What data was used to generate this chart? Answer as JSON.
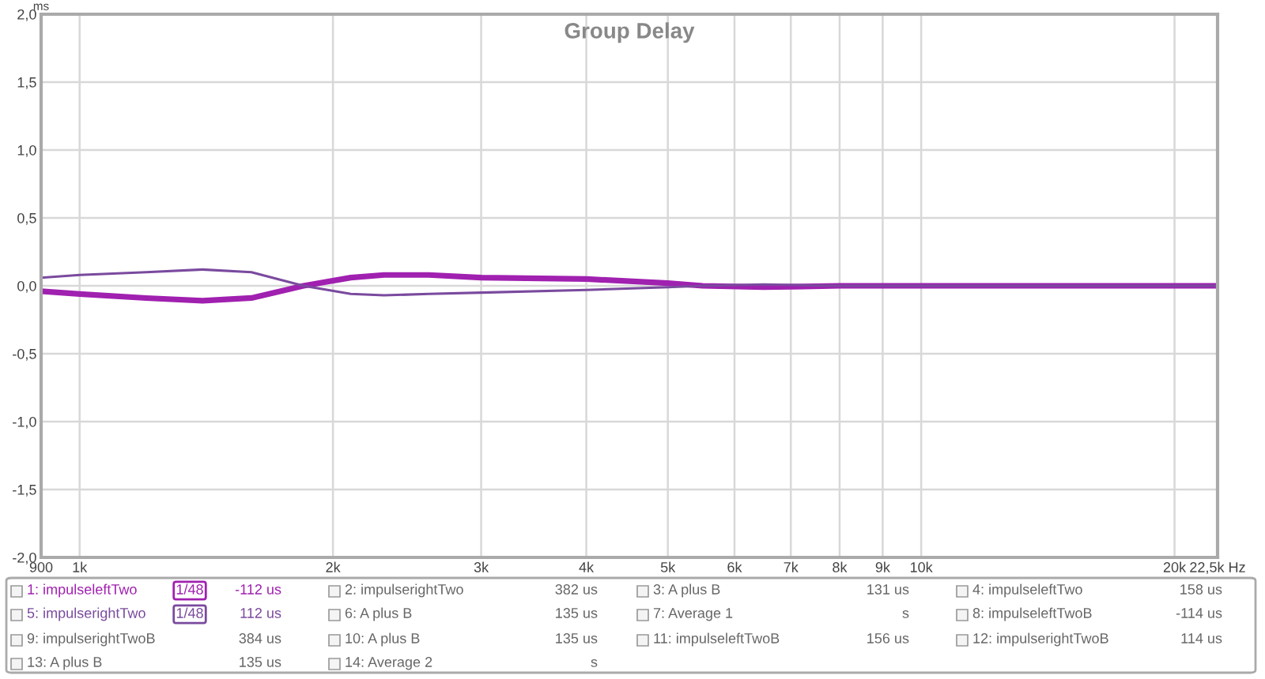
{
  "chart_data": {
    "type": "line",
    "title": "Group Delay",
    "ylabel": "ms",
    "x": [
      900,
      1000,
      1200,
      1400,
      1600,
      1845,
      2100,
      2300,
      2600,
      3000,
      4000,
      5000,
      5500,
      6500,
      8000,
      10000,
      15000,
      22500
    ],
    "series": [
      {
        "name": "1: impulseleftTwo",
        "color": "#a020b0",
        "values": [
          -0.04,
          -0.06,
          -0.09,
          -0.11,
          -0.09,
          0,
          0.06,
          0.08,
          0.08,
          0.06,
          0.05,
          0.02,
          0,
          -0.01,
          0,
          0,
          0,
          0
        ]
      },
      {
        "name": "5: impulserightTwo",
        "color": "#7a4a9e",
        "values": [
          0.06,
          0.08,
          0.1,
          0.12,
          0.1,
          0,
          -0.06,
          -0.07,
          -0.06,
          -0.05,
          -0.03,
          -0.01,
          0,
          0.01,
          0,
          0,
          0,
          0
        ]
      }
    ],
    "log": "x",
    "xlim": [
      900,
      22500
    ],
    "xticks": [
      {
        "value": 900,
        "label": "900"
      },
      {
        "value": 1000,
        "label": "1k"
      },
      {
        "value": 2000,
        "label": "2k"
      },
      {
        "value": 3000,
        "label": "3k"
      },
      {
        "value": 4000,
        "label": "4k"
      },
      {
        "value": 5000,
        "label": "5k"
      },
      {
        "value": 6000,
        "label": "6k"
      },
      {
        "value": 7000,
        "label": "7k"
      },
      {
        "value": 8000,
        "label": "8k"
      },
      {
        "value": 9000,
        "label": "9k"
      },
      {
        "value": 10000,
        "label": "10k"
      },
      {
        "value": 20000,
        "label": "20k"
      },
      {
        "value": 22500,
        "label": "22,5k Hz"
      }
    ],
    "ylim": [
      -2,
      2
    ],
    "yticks": [
      {
        "value": -2,
        "label": "-2,0"
      },
      {
        "value": -1.5,
        "label": "-1,5"
      },
      {
        "value": -1,
        "label": "-1,0"
      },
      {
        "value": -0.5,
        "label": "-0,5"
      },
      {
        "value": 0,
        "label": "0,0"
      },
      {
        "value": 0.5,
        "label": "0,5"
      },
      {
        "value": 1,
        "label": "1,0"
      },
      {
        "value": 1.5,
        "label": "1,5"
      },
      {
        "value": 2,
        "label": "2,0"
      }
    ],
    "grid": true,
    "legend": "bottom",
    "annotations": [
      "1/48",
      "-112 us",
      "1/48",
      "112 us",
      "2: impulserightTwo",
      "382 us",
      "3: A plus B",
      "131 us",
      "4: impulseleftTwo",
      "158 us",
      "6: A plus B",
      "135 us",
      "7: Average 1",
      "s",
      "8: impulseleftTwoB",
      "-114 us",
      "9: impulserightTwoB",
      "384 us",
      "10: A plus B",
      "135 us",
      "11: impulseleftTwoB",
      "156 us",
      "12: impulserightTwoB",
      "114 us",
      "13: A plus B",
      "135 us",
      "14: Average 2",
      "s"
    ]
  }
}
